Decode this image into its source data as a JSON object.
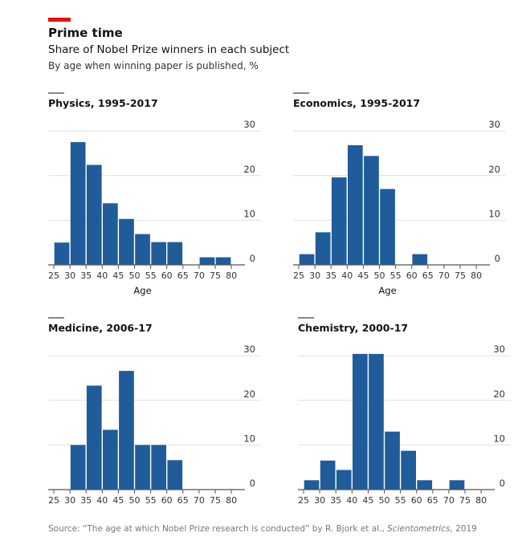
{
  "header": {
    "title": "Prime time",
    "subtitle": "Share of Nobel Prize winners in each subject",
    "subtitle2": "By age when winning paper is published, %"
  },
  "source": {
    "prefix": "Source: “The age at which Nobel Prize research is conducted” by R. Bjork et al., ",
    "journal": "Scientometrics",
    "suffix": ", 2019"
  },
  "colors": {
    "bar": "#1f5c99",
    "accent": "#e3120b",
    "grid": "#e0e0e0"
  },
  "chart_data": [
    {
      "type": "bar",
      "title": "Physics, 1995-2017",
      "xlabel": "Age",
      "ylabel": "",
      "ylim": [
        0,
        30
      ],
      "yticks": [
        0,
        10,
        20,
        30
      ],
      "xticks": [
        25,
        30,
        35,
        40,
        45,
        50,
        55,
        60,
        65,
        70,
        75,
        80
      ],
      "grid": true,
      "bins": [
        [
          25,
          30,
          5
        ],
        [
          30,
          35,
          27.5
        ],
        [
          35,
          40,
          22.4
        ],
        [
          40,
          45,
          13.8
        ],
        [
          45,
          50,
          10.3
        ],
        [
          50,
          55,
          6.9
        ],
        [
          55,
          60,
          5.1
        ],
        [
          60,
          65,
          5.1
        ],
        [
          70,
          75,
          1.7
        ],
        [
          75,
          80,
          1.7
        ]
      ]
    },
    {
      "type": "bar",
      "title": "Economics, 1995-2017",
      "xlabel": "Age",
      "ylabel": "",
      "ylim": [
        0,
        30
      ],
      "yticks": [
        0,
        10,
        20,
        30
      ],
      "xticks": [
        25,
        30,
        35,
        40,
        45,
        50,
        55,
        60,
        65,
        70,
        75,
        80
      ],
      "grid": true,
      "bins": [
        [
          25,
          30,
          2.4
        ],
        [
          30,
          35,
          7.3
        ],
        [
          35,
          40,
          19.6
        ],
        [
          40,
          45,
          26.8
        ],
        [
          45,
          50,
          24.4
        ],
        [
          50,
          55,
          17.0
        ],
        [
          60,
          65,
          2.4
        ]
      ]
    },
    {
      "type": "bar",
      "title": "Medicine, 2006-17",
      "xlabel": "",
      "ylabel": "",
      "ylim": [
        0,
        30
      ],
      "yticks": [
        0,
        10,
        20,
        30
      ],
      "xticks": [
        25,
        30,
        35,
        40,
        45,
        50,
        55,
        60,
        65,
        70,
        75,
        80
      ],
      "grid": true,
      "bins": [
        [
          30,
          35,
          10
        ],
        [
          35,
          40,
          23.3
        ],
        [
          40,
          45,
          13.4
        ],
        [
          45,
          50,
          26.6
        ],
        [
          50,
          55,
          10
        ],
        [
          55,
          60,
          10
        ],
        [
          60,
          65,
          6.6
        ]
      ]
    },
    {
      "type": "bar",
      "title": "Chemistry, 2000-17",
      "xlabel": "",
      "ylabel": "",
      "ylim": [
        0,
        30
      ],
      "yticks": [
        0,
        10,
        20,
        30
      ],
      "xticks": [
        25,
        30,
        35,
        40,
        45,
        50,
        55,
        60,
        65,
        70,
        75,
        80
      ],
      "grid": true,
      "bins": [
        [
          25,
          30,
          2.1
        ],
        [
          30,
          35,
          6.5
        ],
        [
          35,
          40,
          4.4
        ],
        [
          40,
          45,
          30.4
        ],
        [
          45,
          50,
          30.4
        ],
        [
          50,
          55,
          13.0
        ],
        [
          55,
          60,
          8.7
        ],
        [
          60,
          65,
          2.1
        ],
        [
          70,
          75,
          2.1
        ]
      ]
    }
  ]
}
